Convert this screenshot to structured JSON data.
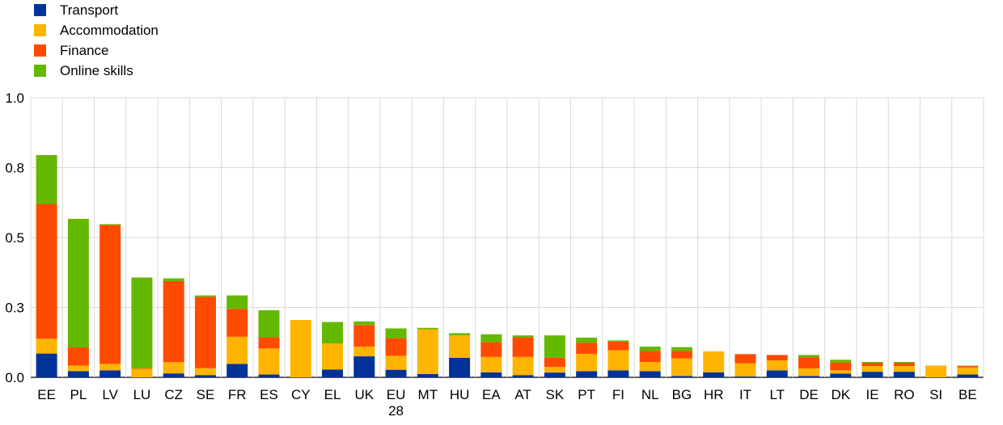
{
  "chart_data": {
    "type": "bar",
    "stacked": true,
    "title": "",
    "xlabel": "",
    "ylabel": "",
    "ylim": [
      0,
      1.0
    ],
    "y_ticks": [
      "0.0",
      "0.3",
      "0.5",
      "0.8",
      "1.0"
    ],
    "y_tick_values": [
      0,
      0.25,
      0.5,
      0.75,
      1.0
    ],
    "grid": true,
    "legend_position": "top-left",
    "categories": [
      "EE",
      "PL",
      "LV",
      "LU",
      "CZ",
      "SE",
      "FR",
      "ES",
      "CY",
      "EL",
      "UK",
      "EU 28",
      "MT",
      "HU",
      "EA",
      "AT",
      "SK",
      "PT",
      "FI",
      "NL",
      "BG",
      "HR",
      "IT",
      "LT",
      "DE",
      "DK",
      "IE",
      "RO",
      "SI",
      "BE"
    ],
    "category_labels": [
      [
        "EE"
      ],
      [
        "PL"
      ],
      [
        "LV"
      ],
      [
        "LU"
      ],
      [
        "CZ"
      ],
      [
        "SE"
      ],
      [
        "FR"
      ],
      [
        "ES"
      ],
      [
        "CY"
      ],
      [
        "EL"
      ],
      [
        "UK"
      ],
      [
        "EU",
        "28"
      ],
      [
        "MT"
      ],
      [
        "HU"
      ],
      [
        "EA"
      ],
      [
        "AT"
      ],
      [
        "SK"
      ],
      [
        "PT"
      ],
      [
        "FI"
      ],
      [
        "NL"
      ],
      [
        "BG"
      ],
      [
        "HR"
      ],
      [
        "IT"
      ],
      [
        "LT"
      ],
      [
        "DE"
      ],
      [
        "DK"
      ],
      [
        "IE"
      ],
      [
        "RO"
      ],
      [
        "SI"
      ],
      [
        "BE"
      ]
    ],
    "series": [
      {
        "name": "Transport",
        "color": "#003299",
        "values": [
          0.085,
          0.022,
          0.025,
          0.0,
          0.014,
          0.008,
          0.048,
          0.01,
          0.0,
          0.028,
          0.075,
          0.027,
          0.012,
          0.07,
          0.018,
          0.008,
          0.017,
          0.022,
          0.025,
          0.022,
          0.005,
          0.018,
          0.003,
          0.025,
          0.005,
          0.013,
          0.02,
          0.02,
          0.0,
          0.01
        ]
      },
      {
        "name": "Accommodation",
        "color": "#FFB400",
        "values": [
          0.053,
          0.02,
          0.023,
          0.03,
          0.04,
          0.025,
          0.097,
          0.093,
          0.205,
          0.093,
          0.035,
          0.05,
          0.16,
          0.08,
          0.055,
          0.065,
          0.02,
          0.062,
          0.072,
          0.033,
          0.063,
          0.075,
          0.047,
          0.035,
          0.027,
          0.012,
          0.02,
          0.02,
          0.042,
          0.025
        ]
      },
      {
        "name": "Finance",
        "color": "#FF4B00",
        "values": [
          0.482,
          0.065,
          0.497,
          0.002,
          0.29,
          0.255,
          0.1,
          0.04,
          0.0,
          0.0,
          0.077,
          0.063,
          0.0,
          0.0,
          0.053,
          0.07,
          0.033,
          0.04,
          0.03,
          0.04,
          0.027,
          0.0,
          0.033,
          0.02,
          0.04,
          0.028,
          0.012,
          0.012,
          0.0,
          0.005
        ]
      },
      {
        "name": "Online skills",
        "color": "#65B800",
        "values": [
          0.175,
          0.46,
          0.003,
          0.325,
          0.01,
          0.005,
          0.048,
          0.097,
          0.0,
          0.077,
          0.013,
          0.035,
          0.005,
          0.008,
          0.028,
          0.007,
          0.08,
          0.018,
          0.005,
          0.015,
          0.013,
          0.0,
          0.0,
          0.0,
          0.008,
          0.01,
          0.003,
          0.003,
          0.0,
          0.002
        ]
      }
    ]
  }
}
